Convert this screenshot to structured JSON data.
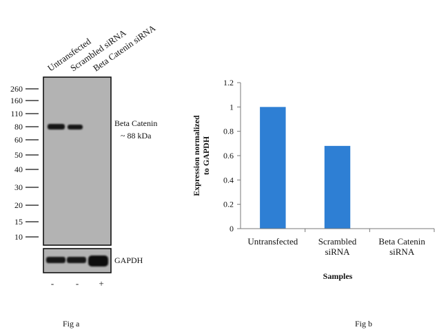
{
  "figure_a": {
    "caption": "Fig a",
    "lane_labels": [
      "Untransfected",
      "Scrambled siRNA",
      "Beta Catenin siRNA"
    ],
    "mw_markers": [
      "260",
      "160",
      "110",
      "80",
      "60",
      "50",
      "40",
      "30",
      "20",
      "15",
      "10"
    ],
    "target_label_line1": "Beta Catenin",
    "target_label_line2": "~ 88 kDa",
    "loading_control_label": "GAPDH",
    "treatment_signs": [
      "-",
      "-",
      "+"
    ]
  },
  "chart_data": {
    "type": "bar",
    "caption": "Fig b",
    "categories": [
      [
        "Untransfected"
      ],
      [
        "Scrambled",
        "siRNA"
      ],
      [
        "Beta Catenin",
        "siRNA"
      ]
    ],
    "values": [
      1.0,
      0.68,
      0.0
    ],
    "ylabel_line1": "Expression normalized",
    "ylabel_line2": "to GAPDH",
    "xlabel": "Samples",
    "ylim": [
      0,
      1.2
    ],
    "yticks": [
      "0",
      "0.2",
      "0.4",
      "0.6",
      "0.8",
      "1",
      "1.2"
    ],
    "grid": false,
    "bar_color": "#2e7fd4"
  }
}
